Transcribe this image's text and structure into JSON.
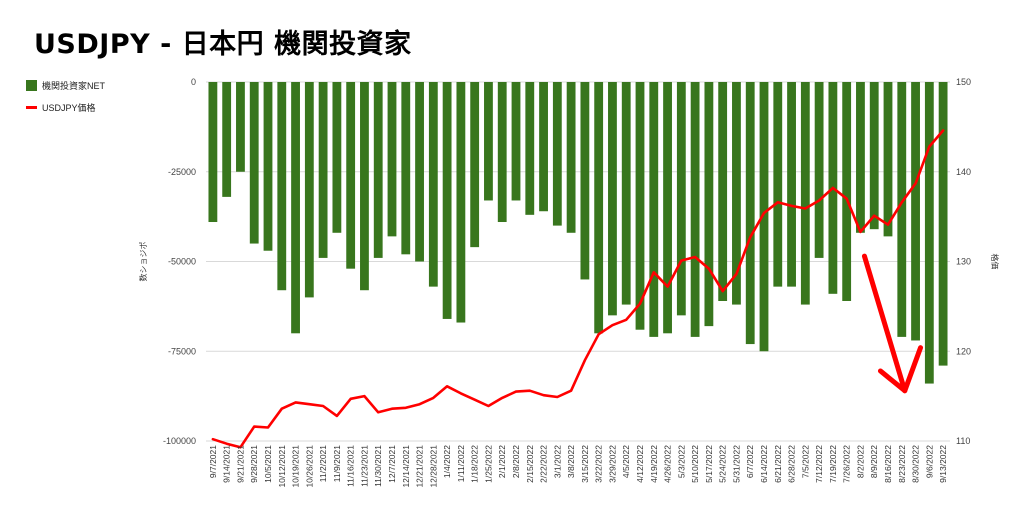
{
  "title": "USDJPY - 日本円 機関投資家",
  "legend": {
    "bar_label": "機関投資家NET",
    "line_label": "USDJPY価格"
  },
  "colors": {
    "bar": "#38761d",
    "line": "#ff0000",
    "arrow": "#ff0000",
    "grid": "#d9d9d9"
  },
  "chart_data": {
    "type": "bar+line",
    "categories": [
      "9/7/2021",
      "9/14/2021",
      "9/21/2021",
      "9/28/2021",
      "10/5/2021",
      "10/12/2021",
      "10/19/2021",
      "10/26/2021",
      "11/2/2021",
      "11/9/2021",
      "11/16/2021",
      "11/23/2021",
      "11/30/2021",
      "12/7/2021",
      "12/14/2021",
      "12/21/2021",
      "12/28/2021",
      "1/4/2022",
      "1/11/2022",
      "1/18/2022",
      "1/25/2022",
      "2/1/2022",
      "2/8/2022",
      "2/15/2022",
      "2/22/2022",
      "3/1/2022",
      "3/8/2022",
      "3/15/2022",
      "3/22/2022",
      "3/29/2022",
      "4/5/2022",
      "4/12/2022",
      "4/19/2022",
      "4/26/2022",
      "5/3/2022",
      "5/10/2022",
      "5/17/2022",
      "5/24/2022",
      "5/31/2022",
      "6/7/2022",
      "6/14/2022",
      "6/21/2022",
      "6/28/2022",
      "7/5/2022",
      "7/12/2022",
      "7/19/2022",
      "7/26/2022",
      "8/2/2022",
      "8/9/2022",
      "8/16/2022",
      "8/23/2022",
      "8/30/2022",
      "9/6/2022",
      "9/13/2022"
    ],
    "tick_labels": [
      "9/7/2021",
      "9/14/2021",
      "9/21/2021",
      "9/28/2021",
      "10/5/2021",
      "10/12/2021",
      "10/19/2021",
      "10/26/2021",
      "11/2/2021",
      "11/9/2021",
      "11/16/2021",
      "11/23/2021",
      "11/30/2021",
      "12/7/2021",
      "12/14/2021",
      "12/21/2021",
      "12/28/2021",
      "1/4/2022",
      "1/11/2022",
      "1/18/2022",
      "1/25/2022",
      "2/1/2022",
      "2/8/2022",
      "2/15/2022",
      "2/22/2022",
      "3/1/2022",
      "3/8/2022",
      "3/15/2022",
      "3/22/2022",
      "3/29/2022",
      "4/5/2022",
      "4/12/2022",
      "4/19/2022",
      "4/26/2022",
      "5/3/2022",
      "5/10/2022",
      "5/17/2022",
      "5/24/2022",
      "5/31/2022",
      "6/7/2022",
      "6/14/2022",
      "6/21/2022",
      "6/28/2022",
      "7/5/2022",
      "7/12/2022",
      "7/19/2022",
      "7/26/2022",
      "8/2/2022",
      "8/9/2022",
      "8/16/2022",
      "8/23/2022",
      "8/30/2022",
      "9/6/2022",
      "9/13/2022"
    ],
    "series": [
      {
        "name": "機関投資家NET",
        "type": "bar",
        "axis": "left",
        "values": [
          -39000,
          -32000,
          -25000,
          -45000,
          -47000,
          -58000,
          -70000,
          -60000,
          -49000,
          -42000,
          -52000,
          -58000,
          -49000,
          -43000,
          -48000,
          -50000,
          -57000,
          -66000,
          -67000,
          -46000,
          -33000,
          -39000,
          -33000,
          -37000,
          -36000,
          -40000,
          -42000,
          -55000,
          -70000,
          -65000,
          -62000,
          -69000,
          -71000,
          -70000,
          -65000,
          -71000,
          -68000,
          -61000,
          -62000,
          -73000,
          -75000,
          -57000,
          -57000,
          -62000,
          -49000,
          -59000,
          -61000,
          -42000,
          -41000,
          -43000,
          -71000,
          -72000,
          -84000,
          -79000
        ]
      },
      {
        "name": "USDJPY価格",
        "type": "line",
        "axis": "right",
        "values": [
          110.2,
          109.7,
          109.3,
          111.6,
          111.5,
          113.6,
          114.3,
          114.1,
          113.9,
          112.8,
          114.7,
          115.0,
          113.2,
          113.6,
          113.7,
          114.1,
          114.8,
          116.1,
          115.3,
          114.6,
          113.9,
          114.8,
          115.5,
          115.6,
          115.1,
          114.9,
          115.6,
          119.0,
          121.9,
          122.9,
          123.5,
          125.3,
          128.8,
          127.2,
          130.1,
          130.5,
          129.2,
          126.7,
          128.6,
          132.7,
          135.4,
          136.6,
          136.2,
          135.9,
          136.8,
          138.2,
          137.0,
          133.3,
          135.1,
          134.1,
          136.6,
          138.7,
          142.8,
          144.6
        ]
      }
    ],
    "y_left": {
      "label": "数ショジポ",
      "min": -100000,
      "max": 0,
      "ticks": [
        0,
        -25000,
        -50000,
        -75000,
        -100000
      ]
    },
    "y_right": {
      "label": "格価",
      "min": 110,
      "max": 150,
      "ticks": [
        150,
        140,
        130,
        120,
        110
      ]
    },
    "grid": true,
    "legend_position": "top-left",
    "annotation": "red arrow pointing down at late Aug 2022 bars"
  }
}
